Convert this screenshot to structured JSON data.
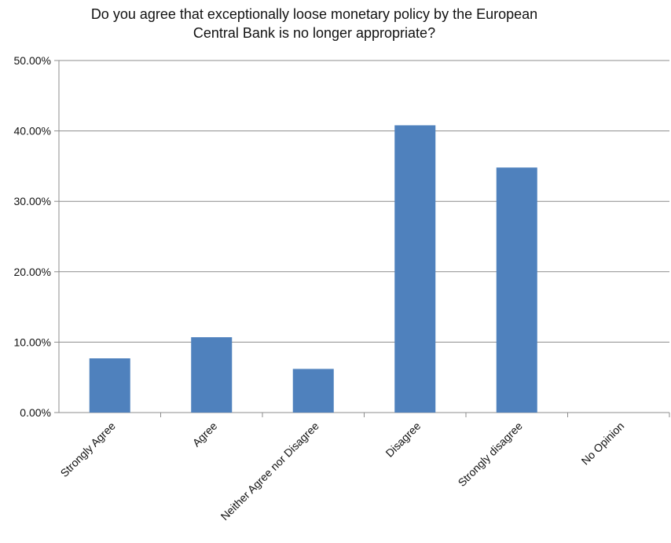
{
  "chart_data": {
    "type": "bar",
    "title_lines": [
      "Do you agree that exceptionally loose monetary policy by the European",
      "Central Bank is no longer appropriate?"
    ],
    "categories": [
      "Strongly Agree",
      "Agree",
      "Neither Agree nor Disagree",
      "Disagree",
      "Strongly disagree",
      "No Opinion"
    ],
    "values": [
      7.7,
      10.7,
      6.2,
      40.8,
      34.8,
      0.0
    ],
    "ylim": [
      0,
      50
    ],
    "yticks": [
      0,
      10,
      20,
      30,
      40,
      50
    ],
    "ytick_labels": [
      "0.00%",
      "10.00%",
      "20.00%",
      "30.00%",
      "40.00%",
      "50.00%"
    ],
    "grid": true,
    "bar_color": "#4f81bd",
    "grid_color": "#8c8c8c"
  }
}
